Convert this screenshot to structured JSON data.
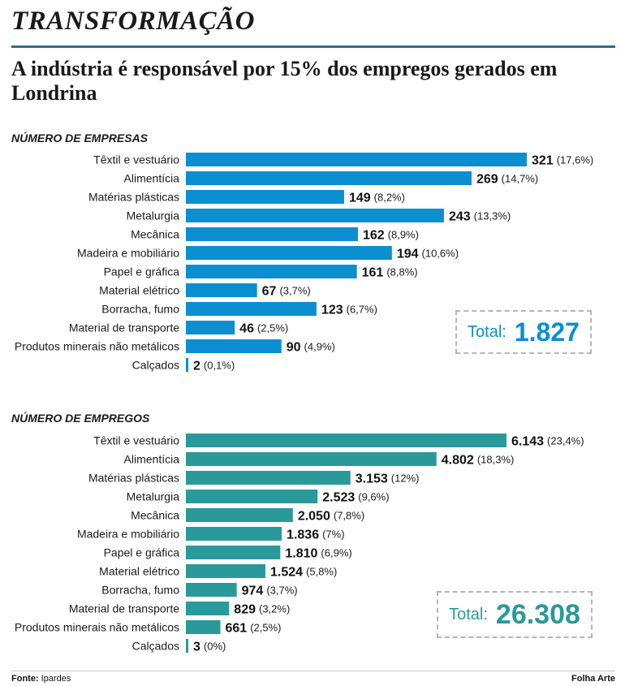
{
  "kicker": "TRANSFORMAÇÃO",
  "headline": "A indústria é responsável por 15% dos empregos gerados em Londrina",
  "footer": {
    "source_label": "Fonte:",
    "source": "Ipardes",
    "credit": "Folha Arte"
  },
  "colors": {
    "bar_companies": "#0b8fd1",
    "bar_jobs": "#2a9999",
    "rule": "#2f6e86"
  },
  "chart_data": [
    {
      "type": "bar",
      "orientation": "horizontal",
      "title": "NÚMERO DE EMPRESAS",
      "categories": [
        "Têxtil e vestuário",
        "Alimentícia",
        "Matérias plásticas",
        "Metalurgia",
        "Mecânica",
        "Madeira e mobiliário",
        "Papel e gráfica",
        "Material elétrico",
        "Borracha, fumo",
        "Material de transporte",
        "Produtos minerais não metálicos",
        "Calçados"
      ],
      "values": [
        321,
        269,
        149,
        243,
        162,
        194,
        161,
        67,
        123,
        46,
        90,
        2
      ],
      "value_labels": [
        "321",
        "269",
        "149",
        "243",
        "162",
        "194",
        "161",
        "67",
        "123",
        "46",
        "90",
        "2"
      ],
      "percent_labels": [
        "(17,6%)",
        "(14,7%)",
        "(8,2%)",
        "(13,3%)",
        "(8,9%)",
        "(10,6%)",
        "(8,8%)",
        "(3,7%)",
        "(6,7%)",
        "(2,5%)",
        "(4,9%)",
        "(0,1%)"
      ],
      "total_label": "Total:",
      "total_value": "1.827"
    },
    {
      "type": "bar",
      "orientation": "horizontal",
      "title": "NÚMERO DE EMPREGOS",
      "categories": [
        "Têxtil e vestuário",
        "Alimentícia",
        "Matérias plásticas",
        "Metalurgia",
        "Mecânica",
        "Madeira e mobiliário",
        "Papel e gráfica",
        "Material elétrico",
        "Borracha, fumo",
        "Material de transporte",
        "Produtos minerais não metálicos",
        "Calçados"
      ],
      "values": [
        6143,
        4802,
        3153,
        2523,
        2050,
        1836,
        1810,
        1524,
        974,
        829,
        661,
        3
      ],
      "value_labels": [
        "6.143",
        "4.802",
        "3.153",
        "2.523",
        "2.050",
        "1.836",
        "1.810",
        "1.524",
        "974",
        "829",
        "661",
        "3"
      ],
      "percent_labels": [
        "(23,4%)",
        "(18,3%)",
        "(12%)",
        "(9,6%)",
        "(7,8%)",
        "(7%)",
        "(6,9%)",
        "(5,8%)",
        "(3,7%)",
        "(3,2%)",
        "(2,5%)",
        "(0%)"
      ],
      "total_label": "Total:",
      "total_value": "26.308"
    }
  ]
}
